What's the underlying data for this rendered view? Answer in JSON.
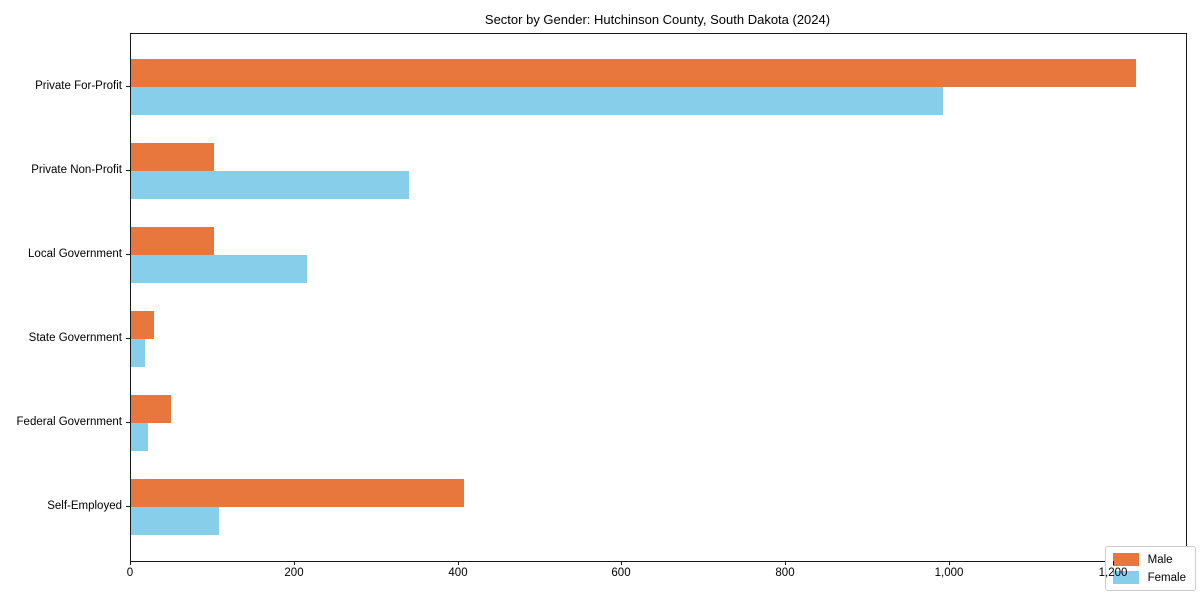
{
  "chart_data": {
    "type": "bar",
    "orientation": "horizontal",
    "title": "Sector by Gender: Hutchinson County, South Dakota (2024)",
    "categories": [
      "Private For-Profit",
      "Private Non-Profit",
      "Local Government",
      "State Government",
      "Federal Government",
      "Self-Employed"
    ],
    "series": [
      {
        "name": "Male",
        "color": "#e8773d",
        "values": [
          1227,
          101,
          101,
          28,
          49,
          406
        ]
      },
      {
        "name": "Female",
        "color": "#87ceeb",
        "values": [
          991,
          339,
          215,
          17,
          21,
          107
        ]
      }
    ],
    "xlabel": "",
    "ylabel": "",
    "xlim": [
      0,
      1288
    ],
    "xticks": [
      0,
      200,
      400,
      600,
      800,
      1000,
      1200
    ],
    "xtick_labels": [
      "0",
      "200",
      "400",
      "600",
      "800",
      "1,000",
      "1,200"
    ],
    "grid": false,
    "legend": {
      "position": "lower right",
      "entries": [
        "Male",
        "Female"
      ]
    }
  },
  "colors": {
    "male": "#e8773d",
    "female": "#87ceeb",
    "axis": "#1a1a1a",
    "background": "#ffffff"
  }
}
